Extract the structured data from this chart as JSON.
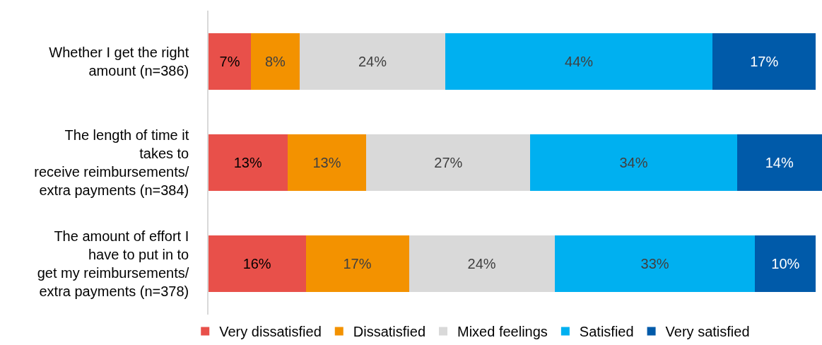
{
  "chart_data": {
    "type": "bar",
    "orientation": "horizontal",
    "stacked": true,
    "categories": [
      "Whether I get the right\namount (n=386)",
      "The length of time it\ntakes to\nreceive reimbursements/\nextra payments (n=384)",
      "The amount of effort I\nhave to put in to\nget my reimbursements/\nextra payments (n=378)"
    ],
    "series": [
      {
        "name": "Very dissatisfied",
        "color": "#e8504a",
        "values": [
          7,
          13,
          16
        ],
        "value_labels": [
          "7%",
          "13%",
          "16%"
        ]
      },
      {
        "name": "Dissatisfied",
        "color": "#f39200",
        "values": [
          8,
          13,
          17
        ],
        "value_labels": [
          "8%",
          "13%",
          "17%"
        ]
      },
      {
        "name": "Mixed feelings",
        "color": "#d9d9d9",
        "values": [
          24,
          27,
          24
        ],
        "value_labels": [
          "24%",
          "27%",
          "24%"
        ]
      },
      {
        "name": "Satisfied",
        "color": "#00b0f0",
        "values": [
          44,
          34,
          33
        ],
        "value_labels": [
          "44%",
          "34%",
          "33%"
        ]
      },
      {
        "name": "Very satisfied",
        "color": "#005aa9",
        "values": [
          17,
          14,
          10
        ],
        "value_labels": [
          "17%",
          "14%",
          "10%"
        ]
      }
    ],
    "xlim": [
      0,
      101
    ],
    "tick_labels": "y",
    "legend": "bottom"
  }
}
